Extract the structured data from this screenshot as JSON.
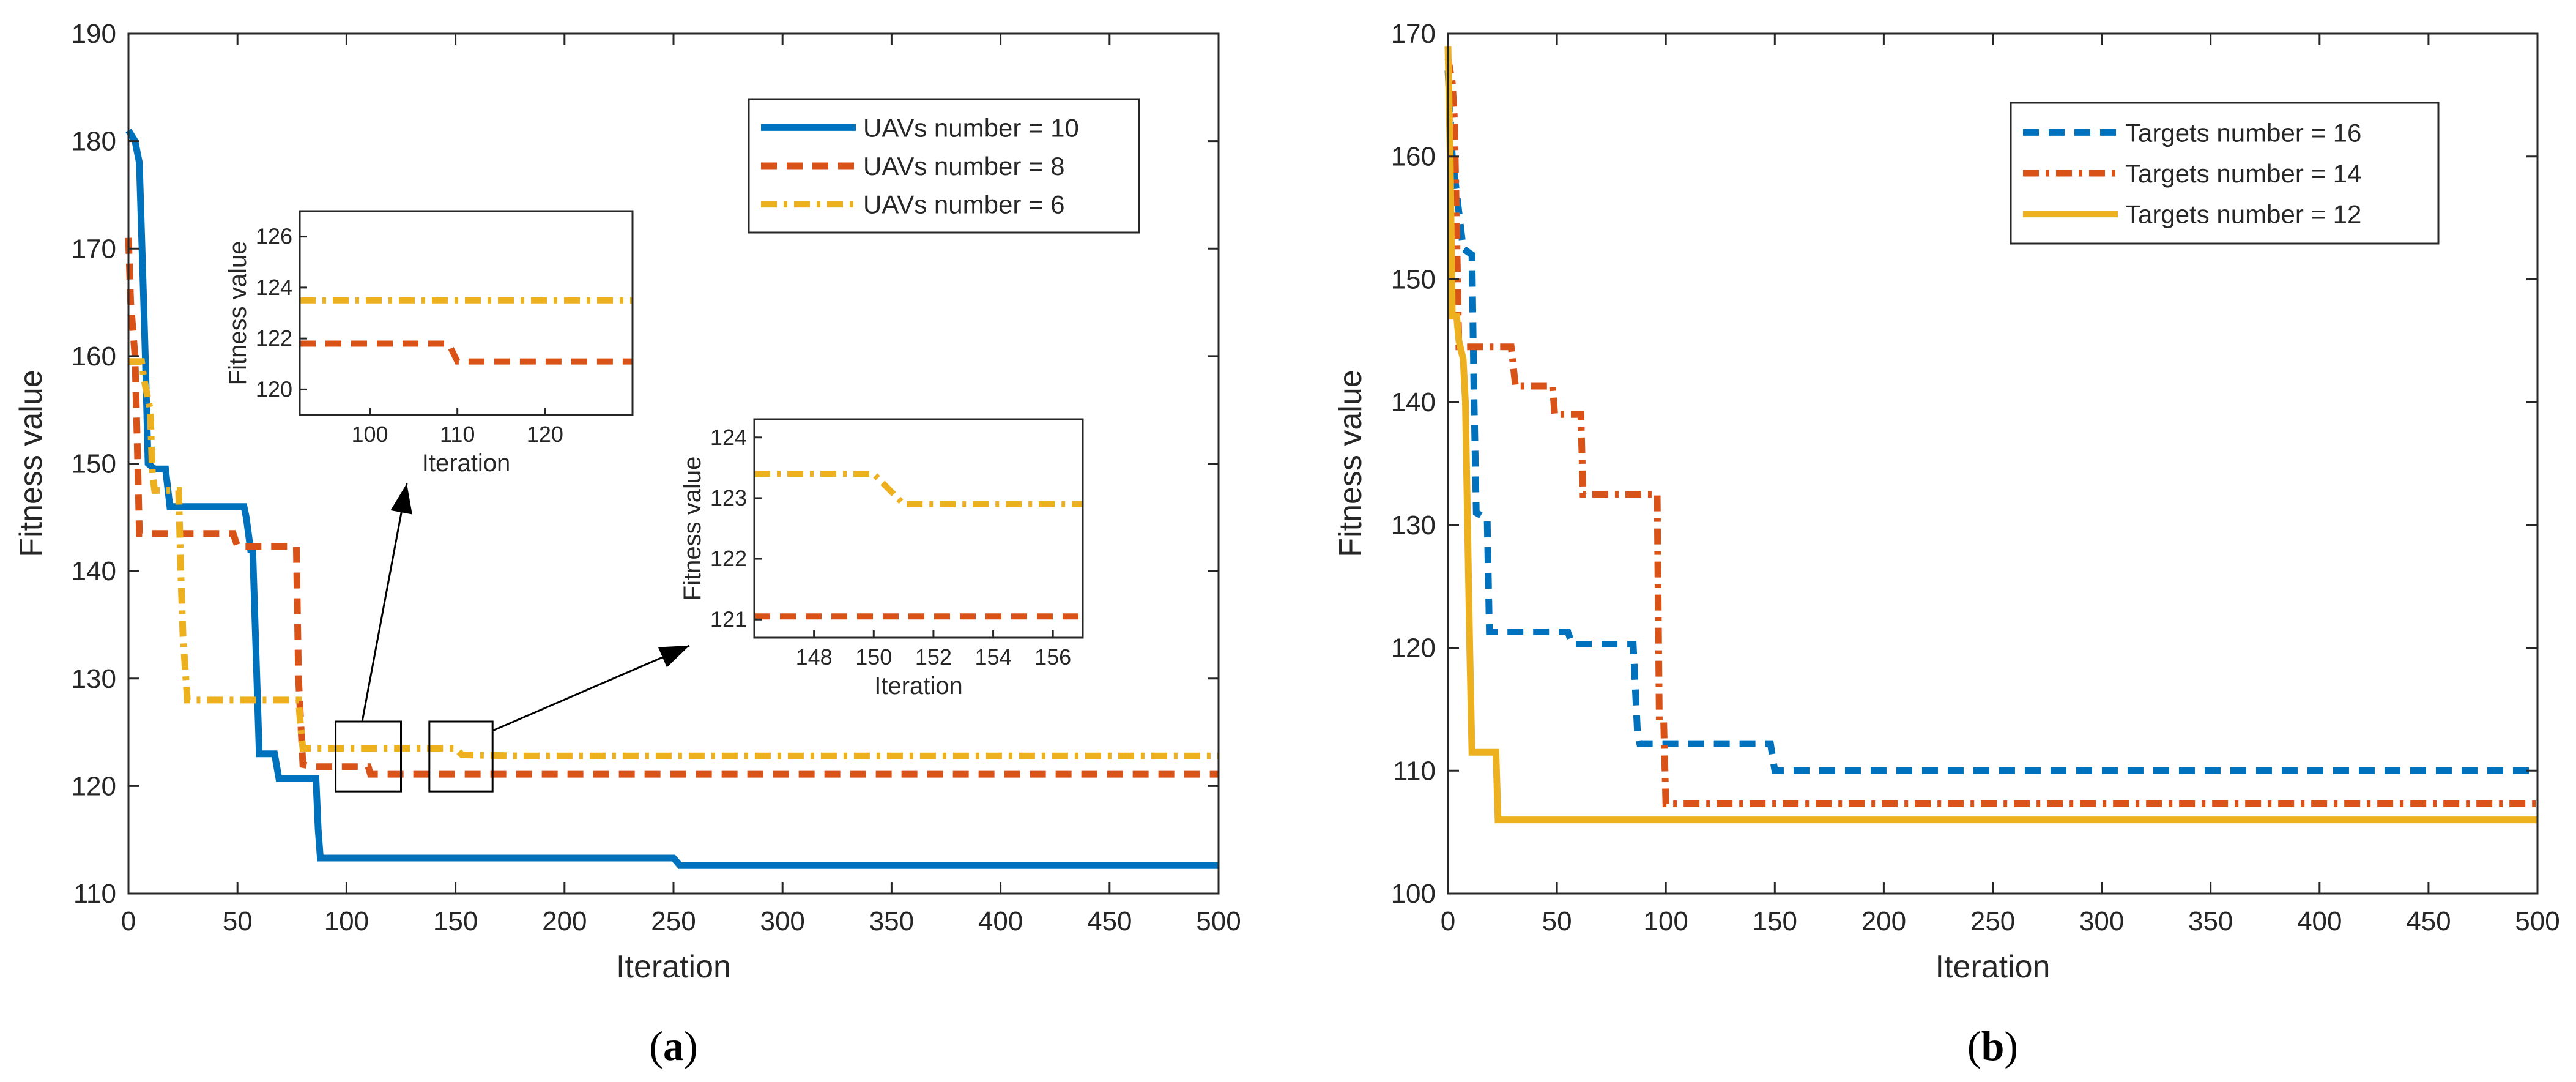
{
  "colors": {
    "blue": "#0072BD",
    "orange": "#D95319",
    "yellow": "#EDB120",
    "axis": "#262626"
  },
  "chart_data": [
    {
      "panel": "a",
      "caption_prefix": "(",
      "caption_letter": "a",
      "caption_suffix": ")",
      "type": "line",
      "xlabel": "Iteration",
      "ylabel": "Fitness value",
      "xlim": [
        0,
        500
      ],
      "ylim": [
        110,
        190
      ],
      "xticks": [
        0,
        50,
        100,
        150,
        200,
        250,
        300,
        350,
        400,
        450,
        500
      ],
      "yticks": [
        110,
        120,
        130,
        140,
        150,
        160,
        170,
        180,
        190
      ],
      "legend_position": "top-right",
      "series": [
        {
          "name": "UAVs number = 10",
          "color": "#0072BD",
          "style": "solid",
          "points": [
            [
              0,
              181
            ],
            [
              3,
              180
            ],
            [
              5,
              178
            ],
            [
              7,
              165
            ],
            [
              8,
              158
            ],
            [
              9,
              150
            ],
            [
              12,
              149.5
            ],
            [
              17,
              149.5
            ],
            [
              19,
              146
            ],
            [
              53,
              146
            ],
            [
              54,
              145
            ],
            [
              56,
              142
            ],
            [
              57,
              142
            ],
            [
              60,
              123
            ],
            [
              67,
              123
            ],
            [
              69,
              120.7
            ],
            [
              86,
              120.7
            ],
            [
              87,
              116
            ],
            [
              88,
              113.3
            ],
            [
              250,
              113.3
            ],
            [
              253,
              112.6
            ],
            [
              500,
              112.6
            ]
          ]
        },
        {
          "name": "UAVs number = 8",
          "color": "#D95319",
          "style": "dashed",
          "points": [
            [
              0,
              171
            ],
            [
              1,
              165
            ],
            [
              3,
              160
            ],
            [
              4,
              152
            ],
            [
              5,
              143.5
            ],
            [
              48,
              143.5
            ],
            [
              50,
              142.3
            ],
            [
              77,
              142.3
            ],
            [
              78,
              130
            ],
            [
              80,
              122
            ],
            [
              85,
              121.8
            ],
            [
              110,
              121.8
            ],
            [
              111,
              121.1
            ],
            [
              500,
              121.1
            ]
          ]
        },
        {
          "name": "UAVs number = 6",
          "color": "#EDB120",
          "style": "dashdot",
          "points": [
            [
              0,
              159.5
            ],
            [
              6,
              159.5
            ],
            [
              7,
              158
            ],
            [
              10,
              155
            ],
            [
              11,
              149
            ],
            [
              12,
              147.5
            ],
            [
              23,
              147.5
            ],
            [
              24,
              140
            ],
            [
              25,
              134
            ],
            [
              27,
              128
            ],
            [
              78,
              128
            ],
            [
              79,
              125.5
            ],
            [
              80,
              123.5
            ],
            [
              150,
              123.5
            ],
            [
              153,
              122.9
            ],
            [
              180,
              122.8
            ],
            [
              500,
              122.8
            ]
          ]
        }
      ],
      "zoom_boxes": [
        {
          "x": [
            95,
            125
          ],
          "y": [
            119.5,
            126
          ]
        },
        {
          "x": [
            138,
            167
          ],
          "y": [
            119.5,
            126
          ]
        }
      ],
      "insets": [
        {
          "xlim": [
            92,
            130
          ],
          "ylim": [
            119,
            127
          ],
          "xticks": [
            100,
            110,
            120
          ],
          "yticks": [
            120,
            122,
            124,
            126
          ],
          "xlabel": "Iteration",
          "ylabel": "Fitness value",
          "series": [
            {
              "color": "#EDB120",
              "style": "dashdot",
              "points": [
                [
                  92,
                  123.5
                ],
                [
                  130,
                  123.5
                ]
              ]
            },
            {
              "color": "#D95319",
              "style": "dashed",
              "points": [
                [
                  92,
                  121.8
                ],
                [
                  109,
                  121.8
                ],
                [
                  110,
                  121.1
                ],
                [
                  130,
                  121.1
                ]
              ]
            }
          ]
        },
        {
          "xlim": [
            146,
            157
          ],
          "ylim": [
            120.7,
            124.3
          ],
          "xticks": [
            148,
            150,
            152,
            154,
            156
          ],
          "yticks": [
            121,
            122,
            123,
            124
          ],
          "xlabel": "Iteration",
          "ylabel": "Fitness value",
          "series": [
            {
              "color": "#EDB120",
              "style": "dashdot",
              "points": [
                [
                  146,
                  123.4
                ],
                [
                  150,
                  123.4
                ],
                [
                  151,
                  122.9
                ],
                [
                  157,
                  122.9
                ]
              ]
            },
            {
              "color": "#D95319",
              "style": "dashed",
              "points": [
                [
                  146,
                  121.05
                ],
                [
                  157,
                  121.05
                ]
              ]
            }
          ]
        }
      ]
    },
    {
      "panel": "b",
      "caption_prefix": "(",
      "caption_letter": "b",
      "caption_suffix": ")",
      "type": "line",
      "xlabel": "Iteration",
      "ylabel": "Fitness value",
      "xlim": [
        0,
        500
      ],
      "ylim": [
        100,
        170
      ],
      "xticks": [
        0,
        50,
        100,
        150,
        200,
        250,
        300,
        350,
        400,
        450,
        500
      ],
      "yticks": [
        100,
        110,
        120,
        130,
        140,
        150,
        160,
        170
      ],
      "legend_position": "top-right",
      "series": [
        {
          "name": "Targets number = 16",
          "color": "#0072BD",
          "style": "dashed",
          "points": [
            [
              0,
              167
            ],
            [
              2,
              160
            ],
            [
              4,
              157
            ],
            [
              7,
              152.5
            ],
            [
              11,
              152
            ],
            [
              12,
              140
            ],
            [
              13,
              131
            ],
            [
              18,
              130.5
            ],
            [
              19,
              121.3
            ],
            [
              55,
              121.3
            ],
            [
              57,
              120.3
            ],
            [
              85,
              120.3
            ],
            [
              87,
              113
            ],
            [
              88,
              112.2
            ],
            [
              148,
              112.2
            ],
            [
              150,
              110
            ],
            [
              500,
              110
            ]
          ]
        },
        {
          "name": "Targets number = 14",
          "color": "#D95319",
          "style": "dashdot",
          "points": [
            [
              0,
              168
            ],
            [
              2,
              166
            ],
            [
              3,
              163
            ],
            [
              5,
              144.5
            ],
            [
              29,
              144.5
            ],
            [
              31,
              141.3
            ],
            [
              48,
              141.3
            ],
            [
              49,
              139
            ],
            [
              61,
              139
            ],
            [
              62,
              132.5
            ],
            [
              96,
              132.5
            ],
            [
              97,
              114
            ],
            [
              99,
              114
            ],
            [
              100,
              107.3
            ],
            [
              500,
              107.3
            ]
          ]
        },
        {
          "name": "Targets number = 12",
          "color": "#EDB120",
          "style": "solid",
          "points": [
            [
              0,
              169
            ],
            [
              1,
              160
            ],
            [
              2,
              147
            ],
            [
              4,
              147
            ],
            [
              5,
              145
            ],
            [
              7,
              143.5
            ],
            [
              8,
              140
            ],
            [
              10,
              120
            ],
            [
              11,
              111.5
            ],
            [
              22,
              111.5
            ],
            [
              23,
              106
            ],
            [
              500,
              106
            ]
          ]
        }
      ]
    }
  ]
}
